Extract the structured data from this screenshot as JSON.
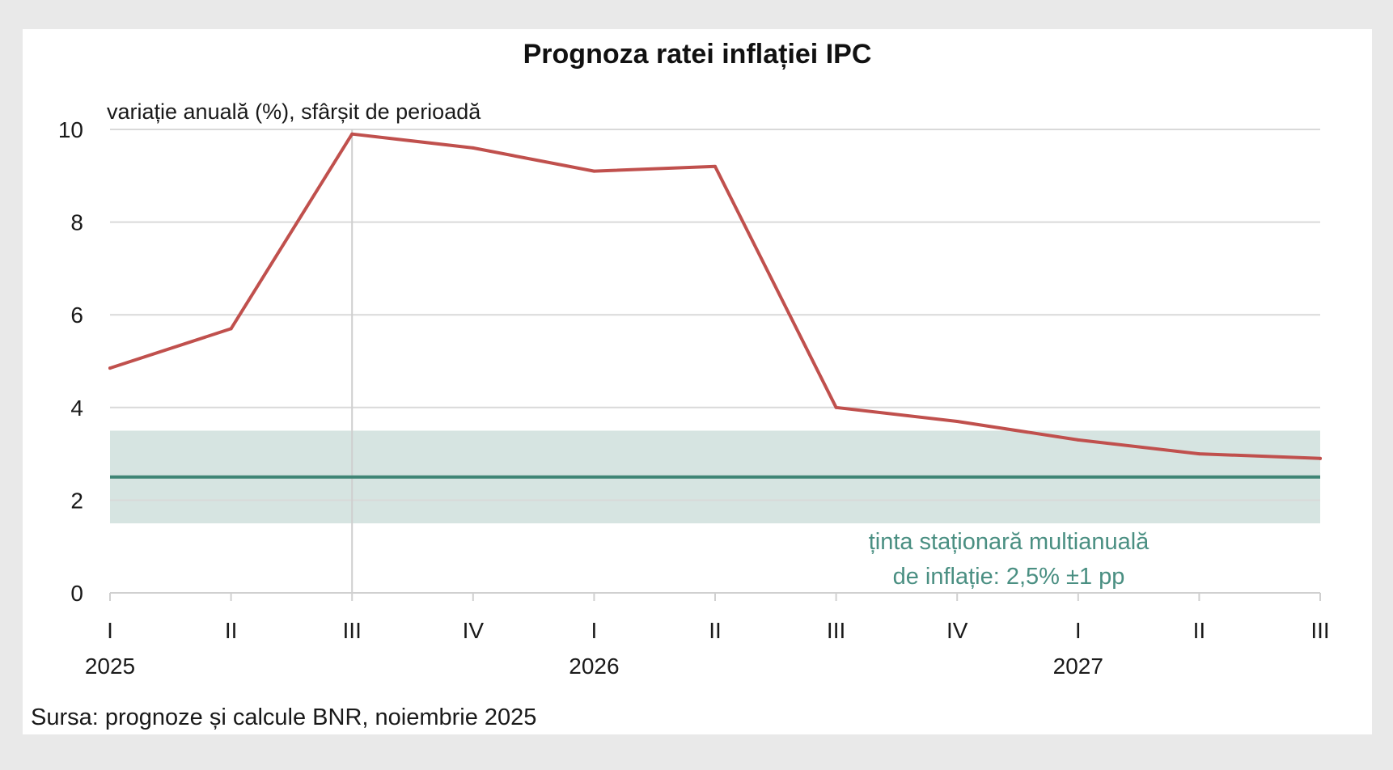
{
  "chart_data": {
    "type": "line",
    "title": "Prognoza ratei inflației IPC",
    "ylabel": "variație anuală (%), sfârșit de perioadă",
    "xlabel": "",
    "ylim": [
      0,
      10
    ],
    "yticks": [
      "0",
      "2",
      "4",
      "6",
      "8",
      "10"
    ],
    "ytick_values": [
      0,
      2,
      4,
      6,
      8,
      10
    ],
    "categories": [
      "I",
      "II",
      "III",
      "IV",
      "I",
      "II",
      "III",
      "IV",
      "I",
      "II",
      "III"
    ],
    "years": [
      {
        "label": "2025",
        "category_index": 0
      },
      {
        "label": "2026",
        "category_index": 4
      },
      {
        "label": "2027",
        "category_index": 8
      }
    ],
    "series": [
      {
        "name": "Prognoza ratei inflației IPC",
        "color": "#c0504d",
        "values": [
          4.85,
          5.7,
          9.9,
          9.6,
          9.1,
          9.2,
          4.0,
          3.7,
          3.3,
          3.0,
          2.9
        ]
      }
    ],
    "target": {
      "value": 2.5,
      "lower": 1.5,
      "upper": 3.5,
      "line_color": "#3f8575",
      "band_color": "#d6e4e1",
      "label_line1": "ținta staționară multianuală",
      "label_line2": "de inflație: 2,5% ±1 pp"
    },
    "vertical_marker_category_index": 2,
    "grid": true,
    "source": "Sursa: prognoze și calcule BNR, noiembrie 2025"
  }
}
